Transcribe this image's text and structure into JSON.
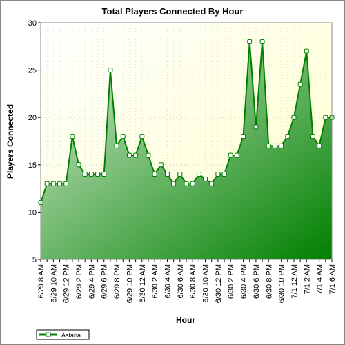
{
  "chart_data": {
    "type": "area",
    "title": "Total Players Connected By Hour",
    "x_label": "Hour",
    "y_label": "Players Connected",
    "categories": [
      "6/29 8 AM",
      null,
      "6/29 10 AM",
      null,
      "6/29 12 PM",
      null,
      "6/29 2 PM",
      null,
      "6/29 4 PM",
      null,
      "6/29 6 PM",
      null,
      "6/29 8 PM",
      null,
      "6/29 10 PM",
      null,
      "6/30 12 AM",
      null,
      "6/30 2 AM",
      null,
      "6/30 4 AM",
      null,
      "6/30 6 AM",
      null,
      "6/30 8 AM",
      null,
      "6/30 10 AM",
      null,
      "6/30 12 PM",
      null,
      "6/30 2 PM",
      null,
      "6/30 4 PM",
      null,
      "6/30 6 PM",
      null,
      "6/30 8 PM",
      null,
      "6/30 10 PM",
      null,
      "7/1 12 AM",
      null,
      "7/1 2 AM",
      null,
      "7/1 4 AM",
      null,
      "7/1 6 AM"
    ],
    "series": [
      {
        "name": "Astaria",
        "color": "#008000",
        "values": [
          11,
          13,
          13,
          13,
          13,
          18,
          15,
          14,
          14,
          14,
          14,
          25,
          17,
          18,
          16,
          16,
          18,
          16,
          14,
          15,
          14,
          13,
          14,
          13,
          13,
          14,
          13.5,
          13,
          14,
          14,
          16,
          16,
          18,
          28,
          19,
          28,
          17,
          17,
          17,
          18,
          20,
          23.5,
          27,
          18,
          17,
          20,
          20
        ]
      }
    ],
    "ylim": [
      5,
      30
    ],
    "yticks": [
      5,
      10,
      15,
      20,
      25,
      30
    ],
    "grid": true,
    "legend": "bottom-left"
  }
}
